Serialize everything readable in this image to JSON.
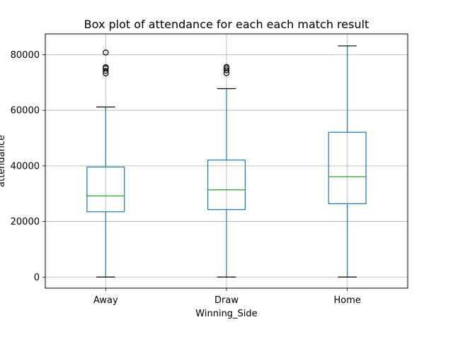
{
  "chart_data": {
    "type": "box",
    "title": "Box plot of attendance for each each match result",
    "xlabel": "Winning_Side",
    "ylabel": "attendance",
    "ylim": [
      -4000,
      87500
    ],
    "yticks": [
      0,
      20000,
      40000,
      60000,
      80000
    ],
    "grid": true,
    "categories": [
      "Away",
      "Draw",
      "Home"
    ],
    "boxes": [
      {
        "category": "Away",
        "whisker_low": 0,
        "q1": 23500,
        "median": 29200,
        "q3": 39600,
        "whisker_high": 61200,
        "outliers": [
          73300,
          74200,
          75100,
          75500,
          80800
        ]
      },
      {
        "category": "Draw",
        "whisker_low": 0,
        "q1": 24300,
        "median": 31400,
        "q3": 42100,
        "whisker_high": 67800,
        "outliers": [
          73400,
          74400,
          75100,
          75600
        ]
      },
      {
        "category": "Home",
        "whisker_low": 0,
        "q1": 26400,
        "median": 36100,
        "q3": 52100,
        "whisker_high": 83200,
        "outliers": []
      }
    ],
    "colors": {
      "box": "#1f77b4",
      "median": "#2ca02c",
      "whisker_cap": "#000000",
      "grid": "#b0b0b0"
    }
  }
}
